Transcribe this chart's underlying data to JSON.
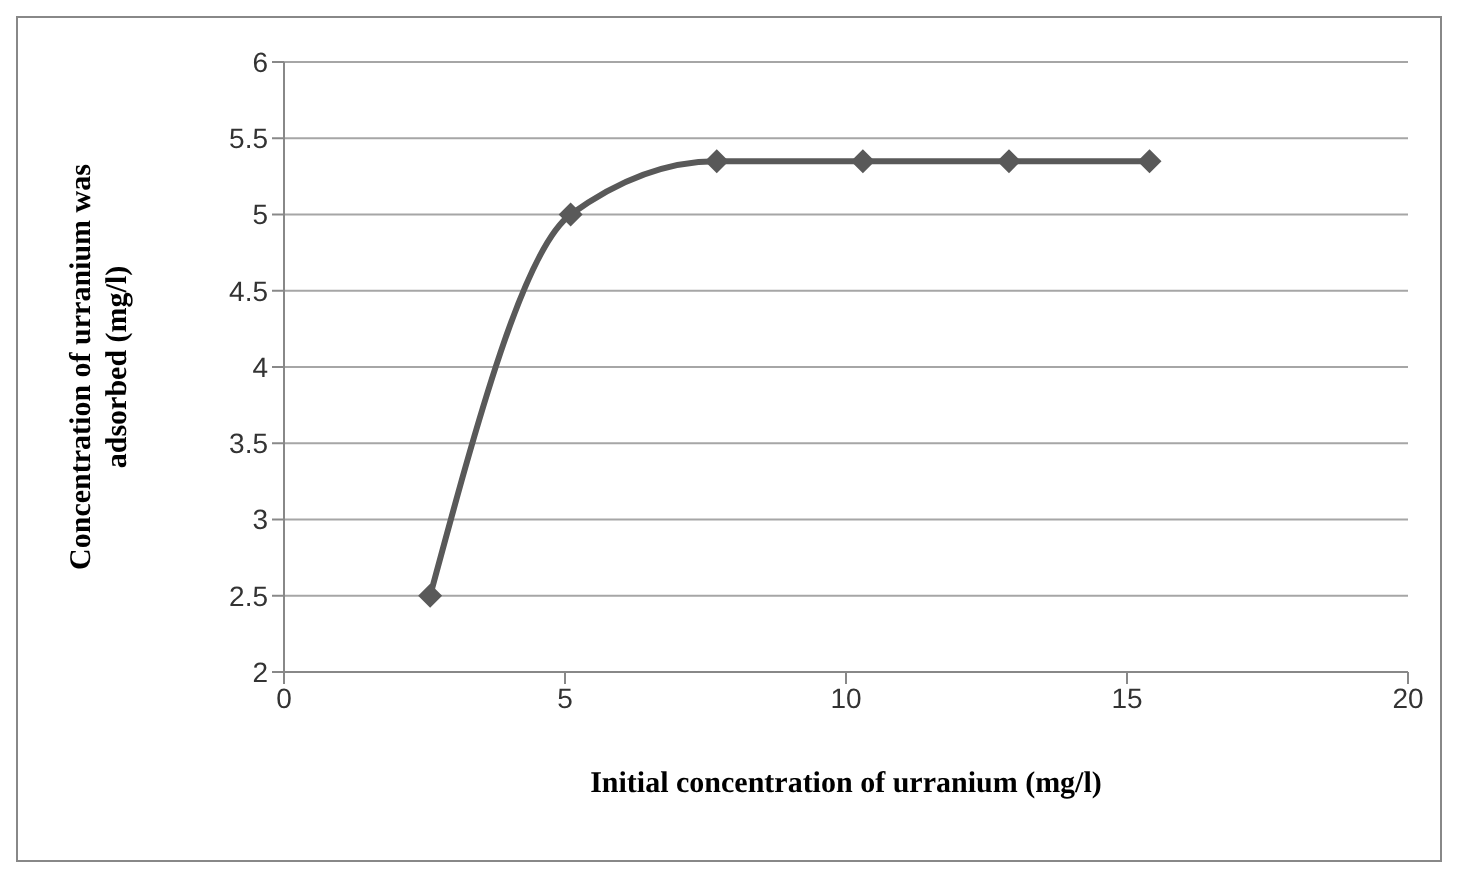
{
  "chart_data": {
    "type": "line",
    "xlabel": "Initial concentration of urranium (mg/l)",
    "ylabel": "Concentration of urranium was adsorbed (mg/l)",
    "x": [
      2.6,
      5.1,
      7.7,
      10.3,
      12.9,
      15.4
    ],
    "series": [
      {
        "color": "#595959",
        "values": [
          2.5,
          5,
          5.35,
          5.35,
          5.35,
          5.35
        ]
      }
    ],
    "xlim": [
      0,
      20
    ],
    "xticks": [
      0,
      5,
      10,
      15,
      20
    ],
    "ylim": [
      2,
      6
    ],
    "yticks": [
      2,
      2.5,
      3,
      3.5,
      4,
      4.5,
      5,
      5.5,
      6
    ],
    "grid": "y",
    "legend": false,
    "marker": "diamond",
    "line_style": "solid"
  }
}
